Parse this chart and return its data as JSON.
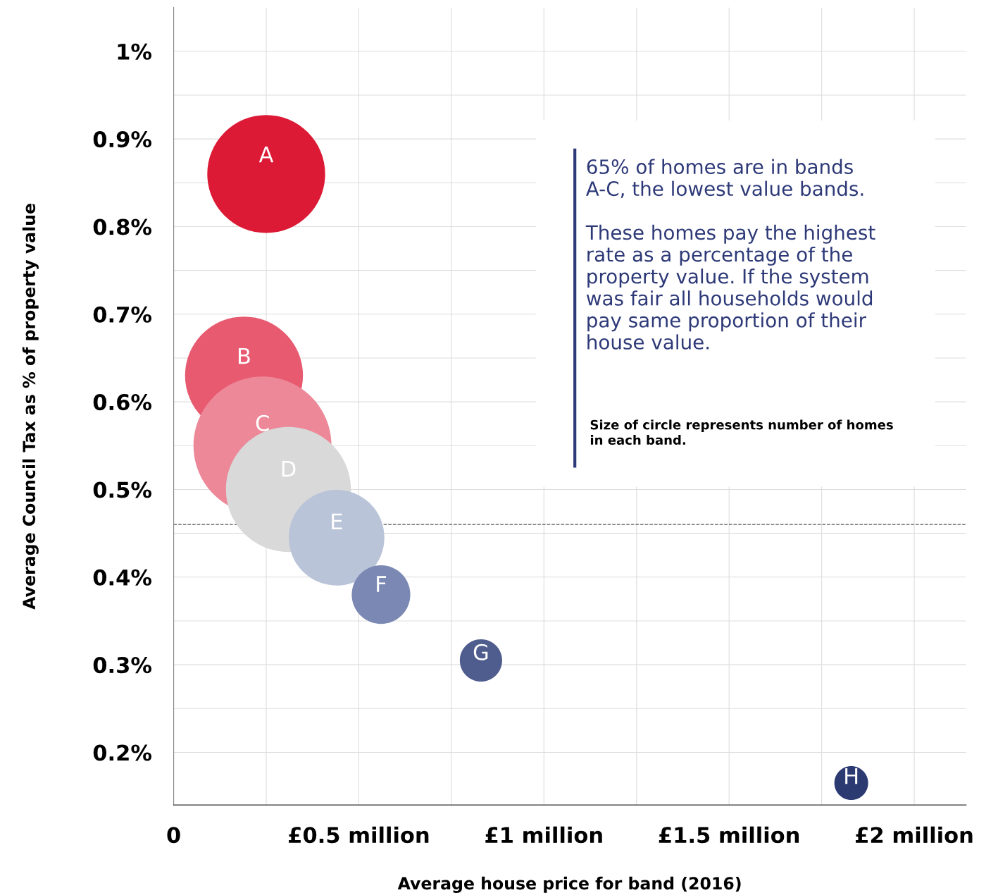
{
  "chart_data": {
    "type": "bubble",
    "xlabel": "Average house price for band (2016)",
    "ylabel": "Average Council Tax as % of property value",
    "series": [
      {
        "name": "A",
        "color": "#dc1a35",
        "x": [
          0.25
        ],
        "values": [
          0.86
        ],
        "sizes": [
          0.73
        ]
      },
      {
        "name": "B",
        "color": "#e85a70",
        "x": [
          0.19
        ],
        "values": [
          0.63
        ],
        "sizes": [
          0.73
        ]
      },
      {
        "name": "C",
        "color": "#ec8898",
        "x": [
          0.24
        ],
        "values": [
          0.55
        ],
        "sizes": [
          1
        ]
      },
      {
        "name": "D",
        "color": "#d9d9d9",
        "x": [
          0.31
        ],
        "values": [
          0.5
        ],
        "sizes": [
          0.82
        ]
      },
      {
        "name": "E",
        "color": "#b9c4d8",
        "x": [
          0.44
        ],
        "values": [
          0.445
        ],
        "sizes": [
          0.48
        ]
      },
      {
        "name": "F",
        "color": "#7b88b4",
        "x": [
          0.56
        ],
        "values": [
          0.38
        ],
        "sizes": [
          0.18
        ]
      },
      {
        "name": "G",
        "color": "#4f5d8e",
        "x": [
          0.83
        ],
        "values": [
          0.305
        ],
        "sizes": [
          0.094
        ]
      },
      {
        "name": "H",
        "color": "#2c3a72",
        "x": [
          1.83
        ],
        "values": [
          0.165
        ],
        "sizes": [
          0.06
        ]
      }
    ],
    "xlim": [
      0,
      2.14
    ],
    "xticks": [
      {
        "value": 0,
        "label": "0"
      },
      {
        "value": 0.25,
        "label": null
      },
      {
        "value": 0.5,
        "label": "£0.5 million"
      },
      {
        "value": 0.75,
        "label": null
      },
      {
        "value": 1,
        "label": "£1 million"
      },
      {
        "value": 1.25,
        "label": null
      },
      {
        "value": 1.5,
        "label": "£1.5 million"
      },
      {
        "value": 1.75,
        "label": null
      },
      {
        "value": 2,
        "label": "£2 million"
      }
    ],
    "ylim": [
      0.14,
      1.05
    ],
    "yticks": [
      {
        "value": 0.2,
        "label": "0.2%"
      },
      {
        "value": 0.25,
        "label": null
      },
      {
        "value": 0.3,
        "label": "0.3%"
      },
      {
        "value": 0.35,
        "label": null
      },
      {
        "value": 0.4,
        "label": "0.4%"
      },
      {
        "value": 0.45,
        "label": null
      },
      {
        "value": 0.5,
        "label": "0.5%"
      },
      {
        "value": 0.55,
        "label": null
      },
      {
        "value": 0.6,
        "label": "0.6%"
      },
      {
        "value": 0.65,
        "label": null
      },
      {
        "value": 0.7,
        "label": "0.7%"
      },
      {
        "value": 0.75,
        "label": null
      },
      {
        "value": 0.8,
        "label": "0.8%"
      },
      {
        "value": 0.85,
        "label": null
      },
      {
        "value": 0.9,
        "label": "0.9%"
      },
      {
        "value": 0.95,
        "label": null
      },
      {
        "value": 1,
        "label": "1%"
      }
    ],
    "grid": true,
    "ref_lines": [
      {
        "axis": "y",
        "value": 0.46,
        "label": null,
        "color": "#555555",
        "line_style": "dashed"
      }
    ],
    "annotations": [
      "65% of homes are in bands\nA-C, the lowest value bands.\n\nThese homes pay the highest\nrate as a percentage of the\nproperty value. If the system\nwas fair all households would\npay same proportion of their\nhouse value.",
      "Size of circle represents number of homes\nin each band."
    ]
  }
}
